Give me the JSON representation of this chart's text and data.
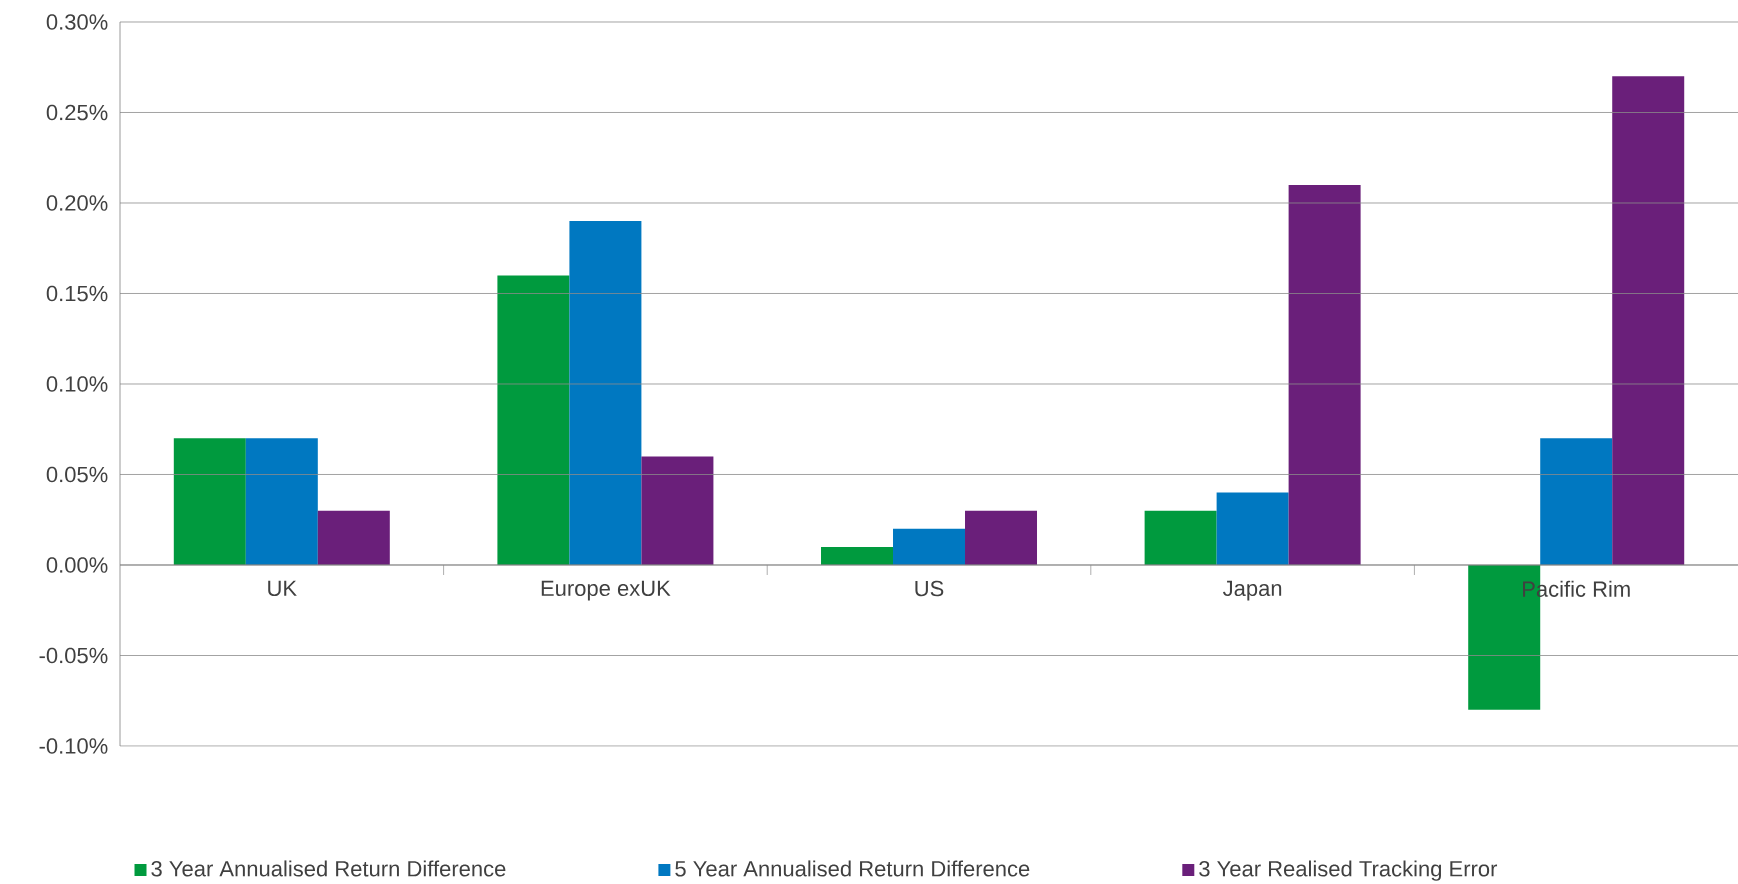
{
  "chart_data": {
    "type": "bar",
    "categories": [
      "UK",
      "Europe exUK",
      "US",
      "Japan",
      "Pacific Rim"
    ],
    "series": [
      {
        "name": "3 Year Annualised Return Difference",
        "color": "#009a3e",
        "values": [
          0.07,
          0.16,
          0.01,
          0.03,
          -0.08
        ]
      },
      {
        "name": "5 Year Annualised Return Difference",
        "color": "#0078c1",
        "values": [
          0.07,
          0.19,
          0.02,
          0.04,
          0.07
        ]
      },
      {
        "name": "3 Year Realised Tracking Error",
        "color": "#6a1f7a",
        "values": [
          0.03,
          0.06,
          0.03,
          0.21,
          0.27
        ]
      }
    ],
    "ylim": [
      -0.1,
      0.3
    ],
    "yticks": [
      {
        "value": -0.1,
        "label": "-0.10%"
      },
      {
        "value": -0.05,
        "label": "-0.05%"
      },
      {
        "value": 0,
        "label": "0.00%"
      },
      {
        "value": 0.05,
        "label": "0.05%"
      },
      {
        "value": 0.1,
        "label": "0.10%"
      },
      {
        "value": 0.15,
        "label": "0.15%"
      },
      {
        "value": 0.2,
        "label": "0.20%"
      },
      {
        "value": 0.25,
        "label": "0.25%"
      },
      {
        "value": 0.3,
        "label": "0.30%"
      }
    ],
    "grid": "y",
    "legend": "bottom"
  }
}
